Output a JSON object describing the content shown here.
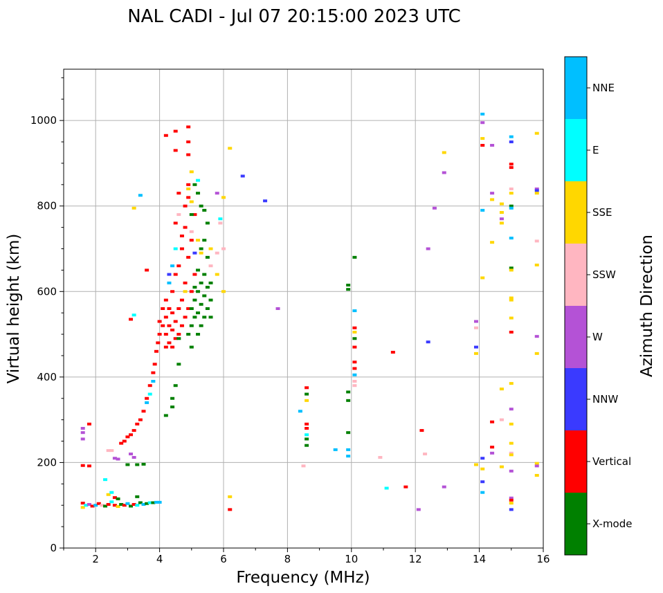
{
  "chart_data": {
    "type": "scatter",
    "title": "NAL CADI - Jul 07 20:15:00 2023 UTC",
    "xlabel": "Frequency (MHz)",
    "ylabel": "Virtual height (km)",
    "xlim": [
      1,
      16
    ],
    "ylim": [
      0,
      1120
    ],
    "xticks": [
      2,
      4,
      6,
      8,
      10,
      12,
      14,
      16
    ],
    "yticks": [
      0,
      200,
      400,
      600,
      800,
      1000
    ],
    "grid": true,
    "colorbar": {
      "label": "Azimuth Direction",
      "categories": [
        {
          "name": "X-mode",
          "color": "#008000"
        },
        {
          "name": "Vertical",
          "color": "#ff0000"
        },
        {
          "name": "NNW",
          "color": "#3a3aff"
        },
        {
          "name": "W",
          "color": "#b452d6"
        },
        {
          "name": "SSW",
          "color": "#ffb6c1"
        },
        {
          "name": "SSE",
          "color": "#ffd700"
        },
        {
          "name": "E",
          "color": "#00ffff"
        },
        {
          "name": "NNE",
          "color": "#00bfff"
        }
      ]
    },
    "points": [
      [
        1.6,
        105,
        "Vertical"
      ],
      [
        1.6,
        95,
        "SSE"
      ],
      [
        1.7,
        100,
        "E"
      ],
      [
        1.8,
        102,
        "W"
      ],
      [
        1.9,
        98,
        "Vertical"
      ],
      [
        2.0,
        100,
        "NNE"
      ],
      [
        2.1,
        104,
        "Vertical"
      ],
      [
        2.2,
        100,
        "SSW"
      ],
      [
        2.3,
        98,
        "X-mode"
      ],
      [
        2.4,
        102,
        "Vertical"
      ],
      [
        2.5,
        108,
        "E"
      ],
      [
        2.6,
        100,
        "Vertical"
      ],
      [
        2.7,
        97,
        "SSE"
      ],
      [
        2.8,
        102,
        "X-mode"
      ],
      [
        2.9,
        100,
        "Vertical"
      ],
      [
        3.0,
        104,
        "NNE"
      ],
      [
        3.1,
        98,
        "X-mode"
      ],
      [
        3.2,
        102,
        "Vertical"
      ],
      [
        3.3,
        100,
        "E"
      ],
      [
        3.4,
        106,
        "X-mode"
      ],
      [
        3.5,
        102,
        "NNE"
      ],
      [
        3.6,
        104,
        "X-mode"
      ],
      [
        3.7,
        106,
        "E"
      ],
      [
        3.8,
        106,
        "X-mode"
      ],
      [
        3.9,
        107,
        "NNE"
      ],
      [
        4.0,
        107,
        "NNE"
      ],
      [
        2.4,
        125,
        "SSE"
      ],
      [
        2.5,
        130,
        "E"
      ],
      [
        2.6,
        118,
        "Vertical"
      ],
      [
        2.7,
        115,
        "X-mode"
      ],
      [
        3.3,
        120,
        "X-mode"
      ],
      [
        2.3,
        160,
        "E"
      ],
      [
        1.6,
        255,
        "W"
      ],
      [
        1.6,
        270,
        "W"
      ],
      [
        1.6,
        280,
        "W"
      ],
      [
        1.8,
        290,
        "Vertical"
      ],
      [
        1.6,
        193,
        "Vertical"
      ],
      [
        1.8,
        192,
        "Vertical"
      ],
      [
        2.4,
        228,
        "SSW"
      ],
      [
        2.5,
        228,
        "SSW"
      ],
      [
        2.6,
        210,
        "W"
      ],
      [
        2.7,
        208,
        "W"
      ],
      [
        2.8,
        245,
        "Vertical"
      ],
      [
        2.9,
        250,
        "Vertical"
      ],
      [
        3.0,
        260,
        "Vertical"
      ],
      [
        3.1,
        265,
        "Vertical"
      ],
      [
        3.2,
        275,
        "Vertical"
      ],
      [
        3.3,
        290,
        "Vertical"
      ],
      [
        3.4,
        300,
        "Vertical"
      ],
      [
        3.5,
        320,
        "Vertical"
      ],
      [
        3.6,
        350,
        "Vertical"
      ],
      [
        3.7,
        380,
        "Vertical"
      ],
      [
        3.8,
        410,
        "Vertical"
      ],
      [
        3.85,
        430,
        "Vertical"
      ],
      [
        3.9,
        460,
        "Vertical"
      ],
      [
        3.95,
        480,
        "Vertical"
      ],
      [
        3.6,
        340,
        "NNE"
      ],
      [
        3.7,
        360,
        "E"
      ],
      [
        3.8,
        390,
        "NNE"
      ],
      [
        3.1,
        220,
        "W"
      ],
      [
        3.2,
        212,
        "W"
      ],
      [
        3.0,
        195,
        "X-mode"
      ],
      [
        3.3,
        195,
        "X-mode"
      ],
      [
        3.5,
        196,
        "X-mode"
      ],
      [
        4.0,
        500,
        "Vertical"
      ],
      [
        4.0,
        530,
        "Vertical"
      ],
      [
        4.1,
        520,
        "Vertical"
      ],
      [
        4.1,
        560,
        "Vertical"
      ],
      [
        4.2,
        470,
        "Vertical"
      ],
      [
        4.2,
        500,
        "Vertical"
      ],
      [
        4.2,
        540,
        "Vertical"
      ],
      [
        4.2,
        580,
        "Vertical"
      ],
      [
        4.3,
        480,
        "Vertical"
      ],
      [
        4.3,
        520,
        "Vertical"
      ],
      [
        4.3,
        560,
        "Vertical"
      ],
      [
        4.4,
        470,
        "Vertical"
      ],
      [
        4.4,
        510,
        "Vertical"
      ],
      [
        4.4,
        550,
        "Vertical"
      ],
      [
        4.4,
        600,
        "Vertical"
      ],
      [
        4.5,
        490,
        "Vertical"
      ],
      [
        4.5,
        530,
        "Vertical"
      ],
      [
        4.5,
        640,
        "Vertical"
      ],
      [
        4.6,
        500,
        "Vertical"
      ],
      [
        4.6,
        560,
        "Vertical"
      ],
      [
        4.6,
        660,
        "Vertical"
      ],
      [
        4.7,
        520,
        "Vertical"
      ],
      [
        4.7,
        580,
        "Vertical"
      ],
      [
        4.7,
        700,
        "Vertical"
      ],
      [
        4.8,
        540,
        "Vertical"
      ],
      [
        4.8,
        620,
        "Vertical"
      ],
      [
        4.8,
        750,
        "Vertical"
      ],
      [
        4.9,
        560,
        "Vertical"
      ],
      [
        4.9,
        680,
        "Vertical"
      ],
      [
        4.9,
        820,
        "Vertical"
      ],
      [
        5.0,
        600,
        "Vertical"
      ],
      [
        5.0,
        720,
        "Vertical"
      ],
      [
        5.1,
        640,
        "Vertical"
      ],
      [
        5.1,
        780,
        "Vertical"
      ],
      [
        4.3,
        640,
        "NNW"
      ],
      [
        4.3,
        620,
        "NNE"
      ],
      [
        4.4,
        660,
        "NNE"
      ],
      [
        4.5,
        700,
        "E"
      ],
      [
        4.5,
        760,
        "Vertical"
      ],
      [
        4.6,
        780,
        "SSW"
      ],
      [
        4.7,
        730,
        "Vertical"
      ],
      [
        4.6,
        830,
        "Vertical"
      ],
      [
        4.8,
        800,
        "Vertical"
      ],
      [
        4.9,
        850,
        "Vertical"
      ],
      [
        4.5,
        930,
        "Vertical"
      ],
      [
        4.5,
        975,
        "Vertical"
      ],
      [
        4.9,
        985,
        "Vertical"
      ],
      [
        4.9,
        950,
        "Vertical"
      ],
      [
        4.2,
        965,
        "Vertical"
      ],
      [
        4.9,
        920,
        "Vertical"
      ],
      [
        4.9,
        500,
        "X-mode"
      ],
      [
        5.0,
        520,
        "X-mode"
      ],
      [
        5.0,
        560,
        "X-mode"
      ],
      [
        5.1,
        540,
        "X-mode"
      ],
      [
        5.1,
        580,
        "X-mode"
      ],
      [
        5.1,
        610,
        "X-mode"
      ],
      [
        5.2,
        500,
        "X-mode"
      ],
      [
        5.2,
        550,
        "X-mode"
      ],
      [
        5.2,
        600,
        "X-mode"
      ],
      [
        5.2,
        650,
        "X-mode"
      ],
      [
        5.3,
        520,
        "X-mode"
      ],
      [
        5.3,
        570,
        "X-mode"
      ],
      [
        5.3,
        620,
        "X-mode"
      ],
      [
        5.3,
        700,
        "X-mode"
      ],
      [
        5.4,
        540,
        "X-mode"
      ],
      [
        5.4,
        590,
        "X-mode"
      ],
      [
        5.4,
        640,
        "X-mode"
      ],
      [
        5.4,
        720,
        "X-mode"
      ],
      [
        5.5,
        560,
        "X-mode"
      ],
      [
        5.5,
        610,
        "X-mode"
      ],
      [
        5.5,
        680,
        "X-mode"
      ],
      [
        5.5,
        760,
        "X-mode"
      ],
      [
        5.6,
        540,
        "X-mode"
      ],
      [
        5.6,
        580,
        "X-mode"
      ],
      [
        5.6,
        620,
        "X-mode"
      ],
      [
        5.1,
        850,
        "X-mode"
      ],
      [
        5.2,
        830,
        "X-mode"
      ],
      [
        5.3,
        800,
        "X-mode"
      ],
      [
        5.0,
        780,
        "X-mode"
      ],
      [
        5.4,
        790,
        "X-mode"
      ],
      [
        5.0,
        470,
        "X-mode"
      ],
      [
        4.6,
        490,
        "X-mode"
      ],
      [
        4.6,
        430,
        "X-mode"
      ],
      [
        4.5,
        380,
        "X-mode"
      ],
      [
        4.4,
        350,
        "X-mode"
      ],
      [
        4.4,
        330,
        "X-mode"
      ],
      [
        4.2,
        310,
        "X-mode"
      ],
      [
        5.0,
        880,
        "SSE"
      ],
      [
        4.9,
        840,
        "SSE"
      ],
      [
        5.0,
        810,
        "SSE"
      ],
      [
        4.8,
        600,
        "SSE"
      ],
      [
        5.2,
        720,
        "SSE"
      ],
      [
        5.3,
        690,
        "SSE"
      ],
      [
        5.6,
        700,
        "SSE"
      ],
      [
        5.8,
        640,
        "SSE"
      ],
      [
        6.0,
        820,
        "SSE"
      ],
      [
        6.2,
        935,
        "SSE"
      ],
      [
        5.0,
        740,
        "SSW"
      ],
      [
        5.6,
        660,
        "SSW"
      ],
      [
        5.8,
        690,
        "SSW"
      ],
      [
        5.9,
        760,
        "SSW"
      ],
      [
        5.1,
        690,
        "NNW"
      ],
      [
        5.2,
        860,
        "E"
      ],
      [
        5.8,
        830,
        "W"
      ],
      [
        5.9,
        770,
        "E"
      ],
      [
        6.0,
        700,
        "SSW"
      ],
      [
        6.0,
        600,
        "SSE"
      ],
      [
        6.6,
        870,
        "NNW"
      ],
      [
        7.3,
        812,
        "NNW"
      ],
      [
        7.7,
        560,
        "W"
      ],
      [
        3.4,
        825,
        "NNE"
      ],
      [
        3.2,
        545,
        "E"
      ],
      [
        3.1,
        535,
        "Vertical"
      ],
      [
        3.2,
        795,
        "SSE"
      ],
      [
        3.6,
        650,
        "Vertical"
      ],
      [
        6.2,
        120,
        "SSE"
      ],
      [
        6.2,
        90,
        "Vertical"
      ],
      [
        8.4,
        320,
        "NNE"
      ],
      [
        8.5,
        192,
        "SSW"
      ],
      [
        8.6,
        375,
        "Vertical"
      ],
      [
        8.6,
        360,
        "X-mode"
      ],
      [
        8.6,
        345,
        "SSE"
      ],
      [
        8.6,
        290,
        "Vertical"
      ],
      [
        8.6,
        280,
        "Vertical"
      ],
      [
        8.6,
        265,
        "E"
      ],
      [
        8.6,
        255,
        "X-mode"
      ],
      [
        8.6,
        240,
        "X-mode"
      ],
      [
        9.5,
        230,
        "NNE"
      ],
      [
        9.9,
        605,
        "X-mode"
      ],
      [
        9.9,
        615,
        "X-mode"
      ],
      [
        9.9,
        365,
        "X-mode"
      ],
      [
        9.9,
        345,
        "X-mode"
      ],
      [
        9.9,
        270,
        "X-mode"
      ],
      [
        9.9,
        230,
        "NNE"
      ],
      [
        9.9,
        215,
        "NNE"
      ],
      [
        10.1,
        680,
        "X-mode"
      ],
      [
        10.1,
        555,
        "NNE"
      ],
      [
        10.1,
        515,
        "Vertical"
      ],
      [
        10.1,
        505,
        "SSE"
      ],
      [
        10.1,
        490,
        "X-mode"
      ],
      [
        10.1,
        470,
        "Vertical"
      ],
      [
        10.1,
        435,
        "Vertical"
      ],
      [
        10.1,
        420,
        "Vertical"
      ],
      [
        10.1,
        405,
        "NNE"
      ],
      [
        10.1,
        390,
        "SSW"
      ],
      [
        10.1,
        380,
        "SSW"
      ],
      [
        10.9,
        212,
        "SSW"
      ],
      [
        11.1,
        140,
        "E"
      ],
      [
        11.3,
        458,
        "Vertical"
      ],
      [
        11.7,
        143,
        "Vertical"
      ],
      [
        12.1,
        90,
        "W"
      ],
      [
        12.2,
        275,
        "Vertical"
      ],
      [
        12.3,
        220,
        "SSW"
      ],
      [
        12.4,
        482,
        "NNW"
      ],
      [
        12.4,
        700,
        "W"
      ],
      [
        12.6,
        795,
        "W"
      ],
      [
        12.9,
        925,
        "SSE"
      ],
      [
        12.9,
        878,
        "W"
      ],
      [
        12.9,
        143,
        "W"
      ],
      [
        13.9,
        530,
        "W"
      ],
      [
        13.9,
        470,
        "NNW"
      ],
      [
        13.9,
        455,
        "SSE"
      ],
      [
        13.9,
        515,
        "SSW"
      ],
      [
        13.9,
        195,
        "SSE"
      ],
      [
        14.1,
        1015,
        "NNE"
      ],
      [
        14.1,
        995,
        "W"
      ],
      [
        14.1,
        958,
        "SSE"
      ],
      [
        14.1,
        942,
        "Vertical"
      ],
      [
        14.1,
        790,
        "NNE"
      ],
      [
        14.1,
        632,
        "SSE"
      ],
      [
        14.1,
        210,
        "NNW"
      ],
      [
        14.1,
        185,
        "SSE"
      ],
      [
        14.1,
        155,
        "NNW"
      ],
      [
        14.1,
        130,
        "NNE"
      ],
      [
        14.4,
        942,
        "W"
      ],
      [
        14.4,
        830,
        "W"
      ],
      [
        14.4,
        815,
        "SSE"
      ],
      [
        14.4,
        715,
        "SSE"
      ],
      [
        14.4,
        295,
        "Vertical"
      ],
      [
        14.4,
        236,
        "Vertical"
      ],
      [
        14.4,
        222,
        "W"
      ],
      [
        14.7,
        805,
        "SSE"
      ],
      [
        14.7,
        785,
        "SSE"
      ],
      [
        14.7,
        770,
        "W"
      ],
      [
        14.7,
        760,
        "SSE"
      ],
      [
        14.7,
        372,
        "SSE"
      ],
      [
        14.7,
        300,
        "SSW"
      ],
      [
        14.7,
        190,
        "SSE"
      ],
      [
        15.0,
        962,
        "NNE"
      ],
      [
        15.0,
        950,
        "NNW"
      ],
      [
        15.0,
        898,
        "Vertical"
      ],
      [
        15.0,
        890,
        "Vertical"
      ],
      [
        15.0,
        840,
        "SSW"
      ],
      [
        15.0,
        830,
        "SSE"
      ],
      [
        15.0,
        800,
        "X-mode"
      ],
      [
        15.0,
        795,
        "NNE"
      ],
      [
        15.0,
        725,
        "NNE"
      ],
      [
        15.0,
        655,
        "X-mode"
      ],
      [
        15.0,
        650,
        "SSE"
      ],
      [
        15.0,
        585,
        "SSE"
      ],
      [
        15.0,
        580,
        "SSE"
      ],
      [
        15.0,
        538,
        "SSE"
      ],
      [
        15.0,
        505,
        "Vertical"
      ],
      [
        15.0,
        385,
        "SSE"
      ],
      [
        15.0,
        325,
        "W"
      ],
      [
        15.0,
        290,
        "SSE"
      ],
      [
        15.0,
        245,
        "SSE"
      ],
      [
        15.0,
        222,
        "SSW"
      ],
      [
        15.0,
        218,
        "SSE"
      ],
      [
        15.0,
        180,
        "W"
      ],
      [
        15.0,
        117,
        "W"
      ],
      [
        15.0,
        112,
        "Vertical"
      ],
      [
        15.0,
        105,
        "SSE"
      ],
      [
        15.0,
        90,
        "NNW"
      ],
      [
        15.8,
        970,
        "SSE"
      ],
      [
        15.8,
        840,
        "W"
      ],
      [
        15.8,
        836,
        "NNW"
      ],
      [
        15.8,
        830,
        "SSE"
      ],
      [
        15.8,
        718,
        "SSW"
      ],
      [
        15.8,
        662,
        "SSE"
      ],
      [
        15.8,
        495,
        "W"
      ],
      [
        15.8,
        455,
        "SSE"
      ],
      [
        15.8,
        198,
        "SSE"
      ],
      [
        15.8,
        192,
        "W"
      ],
      [
        15.8,
        170,
        "SSE"
      ]
    ]
  }
}
